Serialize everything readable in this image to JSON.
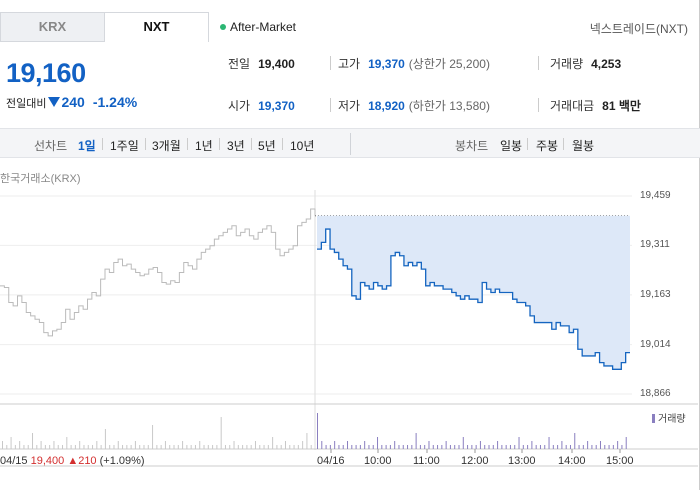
{
  "tabs": [
    {
      "label": "KRX",
      "active": false
    },
    {
      "label": "NXT",
      "active": true
    }
  ],
  "session": {
    "label": "After-Market",
    "color": "#2bb673"
  },
  "exchange_name": "넥스트레이드(NXT)",
  "price": {
    "current": "19,160",
    "change_label": "전일대비",
    "change": "240",
    "change_pct": "-1.24%",
    "direction": "down",
    "color": "#1261c4"
  },
  "stats": {
    "prev_close": {
      "label": "전일",
      "value": "19,400"
    },
    "open": {
      "label": "시가",
      "value": "19,370"
    },
    "high": {
      "label": "고가",
      "value": "19,370",
      "limit_label": "(상한가 25,200)"
    },
    "low": {
      "label": "저가",
      "value": "18,920",
      "limit_label": "(하한가 13,580)"
    },
    "volume": {
      "label": "거래량",
      "value": "4,253"
    },
    "turnover": {
      "label": "거래대금",
      "value": "81 백만"
    }
  },
  "period_bar": {
    "line_chart_label": "선차트",
    "line_periods": [
      "1일",
      "1주일",
      "3개월",
      "1년",
      "3년",
      "5년",
      "10년"
    ],
    "selected": "1일",
    "candle_chart_label": "봉차트",
    "candle_periods": [
      "일봉",
      "주봉",
      "월봉"
    ]
  },
  "chart_source_label": "한국거래소(KRX)",
  "volume_legend": "거래량",
  "prev_day_info": {
    "date": "04/15",
    "close": "19,400",
    "change": "▲210",
    "pct": "(+1.09%)"
  },
  "chart_data": {
    "type": "line",
    "y_ticks": [
      19459,
      19311,
      19163,
      19014,
      18866
    ],
    "ylim": [
      18866,
      19459
    ],
    "x_ticks": [
      "04/16",
      "10:00",
      "11:00",
      "12:00",
      "13:00",
      "14:00",
      "15:00"
    ],
    "baseline": 19400,
    "series": [
      {
        "label": "04/15",
        "color": "#bbbbbb",
        "values": [
          19190,
          19185,
          19140,
          19130,
          19160,
          19140,
          19110,
          19100,
          19090,
          19080,
          19050,
          19040,
          19055,
          19060,
          19080,
          19120,
          19090,
          19110,
          19130,
          19120,
          19150,
          19170,
          19160,
          19210,
          19240,
          19230,
          19260,
          19270,
          19250,
          19255,
          19240,
          19230,
          19220,
          19225,
          19240,
          19245,
          19230,
          19200,
          19195,
          19205,
          19200,
          19230,
          19260,
          19250,
          19240,
          19270,
          19290,
          19300,
          19310,
          19330,
          19340,
          19350,
          19360,
          19370,
          19340,
          19350,
          19360,
          19340,
          19330,
          19350,
          19360,
          19370,
          19350,
          19300,
          19280,
          19290,
          19300,
          19310,
          19370,
          19380,
          19390,
          19420,
          19400
        ]
      },
      {
        "label": "04/16",
        "color": "#1565c0",
        "values": [
          19300,
          19320,
          19360,
          19300,
          19290,
          19270,
          19250,
          19240,
          19160,
          19150,
          19200,
          19190,
          19180,
          19200,
          19190,
          19180,
          19190,
          19280,
          19290,
          19280,
          19250,
          19260,
          19250,
          19260,
          19240,
          19190,
          19200,
          19190,
          19190,
          19180,
          19180,
          19170,
          19160,
          19150,
          19160,
          19150,
          19150,
          19140,
          19200,
          19180,
          19170,
          19180,
          19170,
          19170,
          19170,
          19150,
          19140,
          19140,
          19130,
          19100,
          19080,
          19080,
          19080,
          19080,
          19060,
          19080,
          19070,
          19070,
          19050,
          19060,
          19000,
          18980,
          18980,
          18980,
          18990,
          18960,
          18950,
          18950,
          18940,
          18940,
          18960,
          18990,
          18990
        ]
      }
    ],
    "volume": {
      "prev": [
        2,
        1,
        3,
        1,
        2,
        1,
        1,
        4,
        1,
        2,
        1,
        1,
        2,
        1,
        1,
        3,
        1,
        1,
        2,
        1,
        1,
        1,
        2,
        1,
        5,
        1,
        1,
        2,
        1,
        1,
        1,
        2,
        1,
        1,
        1,
        6,
        1,
        1,
        2,
        1,
        1,
        1,
        2,
        1,
        1,
        1,
        2,
        1,
        1,
        1,
        1,
        8,
        1,
        1,
        2,
        1,
        1,
        1,
        1,
        2,
        1,
        1,
        1,
        3,
        1,
        1,
        2,
        1,
        1,
        1,
        2,
        4,
        1
      ],
      "today": [
        9,
        2,
        1,
        1,
        2,
        1,
        1,
        2,
        1,
        1,
        1,
        2,
        1,
        1,
        3,
        1,
        1,
        1,
        2,
        1,
        1,
        1,
        1,
        4,
        1,
        1,
        2,
        1,
        1,
        1,
        2,
        1,
        1,
        1,
        3,
        1,
        1,
        1,
        2,
        1,
        1,
        1,
        2,
        1,
        1,
        1,
        1,
        3,
        1,
        1,
        2,
        1,
        1,
        1,
        3,
        1,
        1,
        2,
        1,
        1,
        4,
        1,
        1,
        2,
        1,
        1,
        2,
        1,
        1,
        1,
        2,
        1,
        3
      ]
    }
  }
}
